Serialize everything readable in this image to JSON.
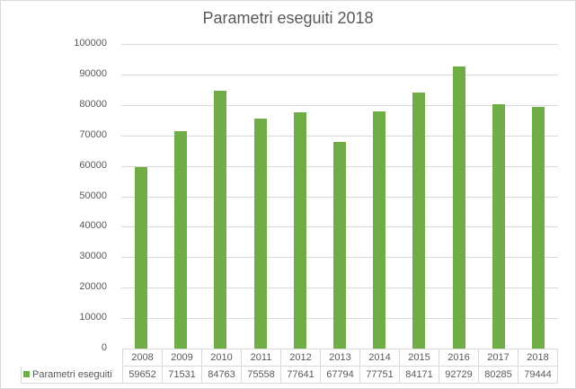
{
  "chart_data": {
    "type": "bar",
    "title": "Parametri eseguiti 2018",
    "categories": [
      "2008",
      "2009",
      "2010",
      "2011",
      "2012",
      "2013",
      "2014",
      "2015",
      "2016",
      "2017",
      "2018"
    ],
    "series": [
      {
        "name": "Parametri eseguiti",
        "color": "#70ad47",
        "values": [
          59652,
          71531,
          84763,
          75558,
          77641,
          67794,
          77751,
          84171,
          92729,
          80285,
          79444
        ]
      }
    ],
    "xlabel": "",
    "ylabel": "",
    "ylim": [
      0,
      100000
    ],
    "yticks": [
      "0",
      "10000",
      "20000",
      "30000",
      "40000",
      "50000",
      "60000",
      "70000",
      "80000",
      "90000",
      "100000"
    ],
    "grid": true,
    "legend_position": "data-table"
  }
}
